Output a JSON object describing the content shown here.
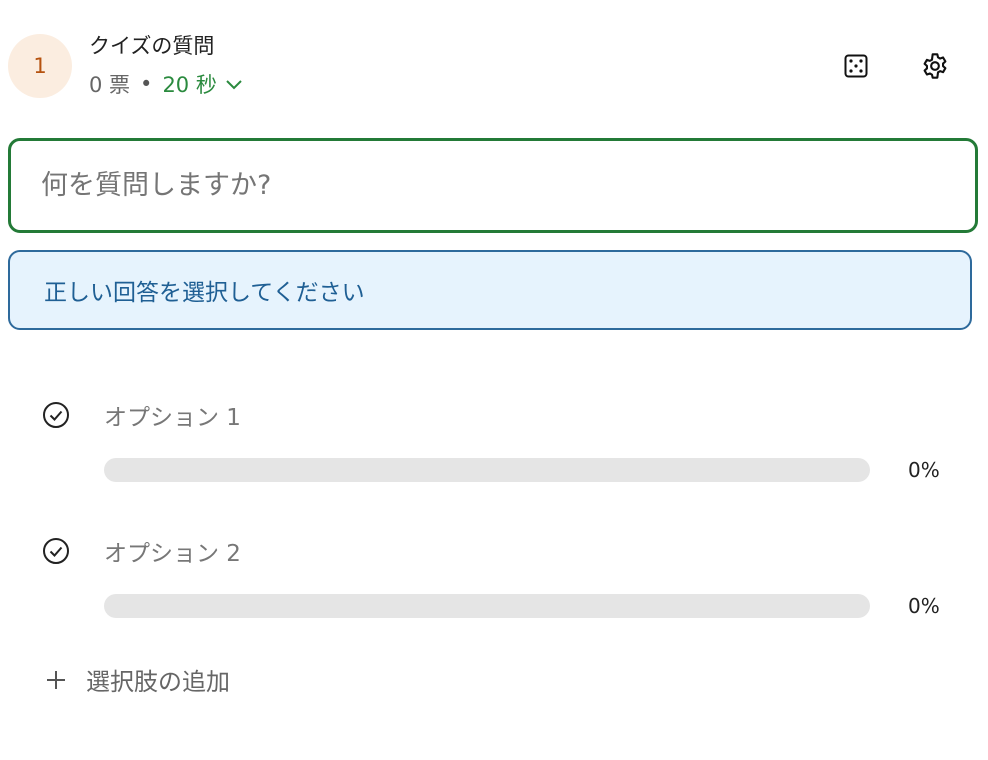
{
  "header": {
    "number": "1",
    "title": "クイズの質問",
    "votes": "0 票",
    "separator": "•",
    "timer": "20 秒"
  },
  "icons": {
    "dice": "dice-icon",
    "settings": "gear-icon"
  },
  "question": {
    "value": "",
    "placeholder": "何を質問しますか?"
  },
  "notice": "正しい回答を選択してください",
  "options": [
    {
      "label": "オプション 1",
      "percent": "0%",
      "fill": 0
    },
    {
      "label": "オプション 2",
      "percent": "0%",
      "fill": 0
    }
  ],
  "add_option": "選択肢の追加",
  "colors": {
    "accent": "#237a37",
    "notice_border": "#2e6a9c",
    "notice_bg": "#e6f3fd"
  }
}
